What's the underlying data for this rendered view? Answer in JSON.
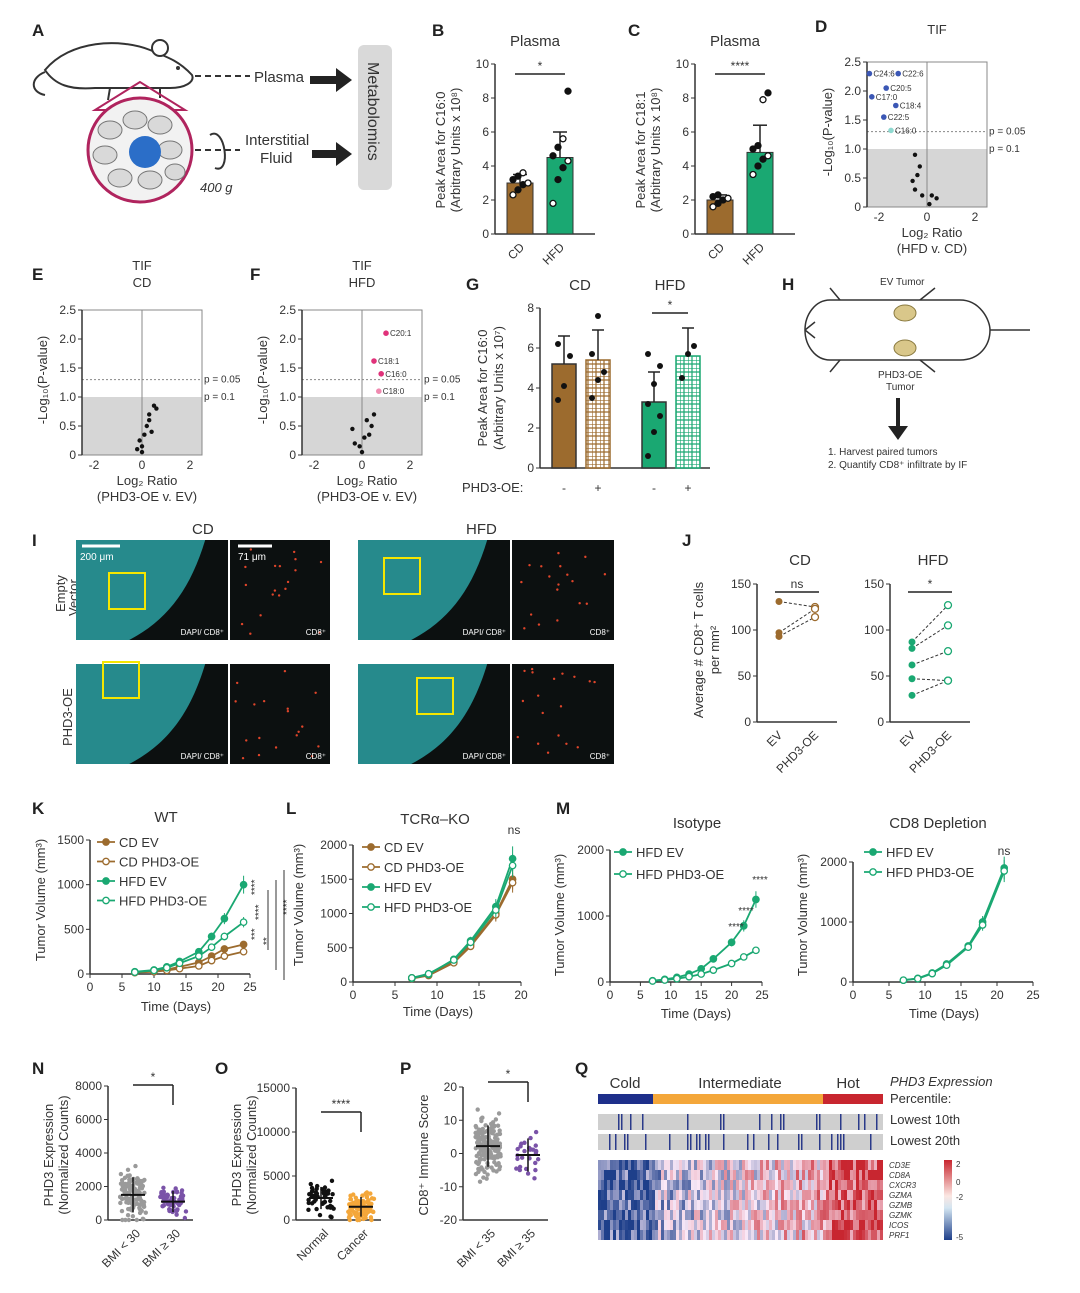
{
  "colors": {
    "cd": "#9c6b2e",
    "hfd": "#1aa872",
    "pink": "#e0327a",
    "cold": "#1e2f8a",
    "intermediate": "#f4a73a",
    "hot": "#c8262f",
    "cyan": "#2fb3b6"
  },
  "labels": {
    "panels": [
      "A",
      "B",
      "C",
      "D",
      "E",
      "F",
      "G",
      "H",
      "I",
      "J",
      "K",
      "L",
      "M",
      "N",
      "O",
      "P",
      "Q"
    ],
    "a": {
      "plasma": "Plasma",
      "interstitial1": "Interstitial",
      "interstitial2": "Fluid",
      "g": "400 g",
      "metabolomics": "Metabolomics"
    },
    "b": {
      "title": "Plasma",
      "ylabel1": "Peak Area for C16:0",
      "ylabel2": "(Arbitrary Units x 10⁸)",
      "yticks": [
        "0",
        "2",
        "4",
        "6",
        "8",
        "10"
      ],
      "cats": [
        "CD",
        "HFD"
      ],
      "sig": "*"
    },
    "c": {
      "title": "Plasma",
      "ylabel1": "Peak Area for C18:1",
      "ylabel2": "(Arbitrary Units x 10⁸)",
      "yticks": [
        "0",
        "2",
        "4",
        "6",
        "8",
        "10"
      ],
      "cats": [
        "CD",
        "HFD"
      ],
      "sig": "****"
    },
    "d": {
      "title": "TIF",
      "ylabel": "-Log₁₀(P-value)",
      "xlabel1": "Log₂ Ratio",
      "xlabel2": "(HFD v. CD)",
      "yticks": [
        "0",
        "0.5",
        "1.0",
        "1.5",
        "2.0",
        "2.5"
      ],
      "xticks": [
        "-2",
        "0",
        "2"
      ],
      "p05": "p = 0.05",
      "p1": "p = 0.1",
      "pts": [
        "C24:6",
        "C22:6",
        "C20:5",
        "C17:0",
        "C18:4",
        "C22:5",
        "C16:0"
      ]
    },
    "e": {
      "title1": "TIF",
      "title2": "CD",
      "ylabel": "-Log₁₀(P-value)",
      "xlabel1": "Log₂ Ratio",
      "xlabel2": "(PHD3-OE v. EV)",
      "yticks": [
        "0",
        "0.5",
        "1.0",
        "1.5",
        "2.0",
        "2.5"
      ],
      "xticks": [
        "-2",
        "0",
        "2"
      ],
      "p05": "p = 0.05",
      "p1": "p = 0.1"
    },
    "f": {
      "title1": "TIF",
      "title2": "HFD",
      "ylabel": "-Log₁₀(P-value)",
      "xlabel1": "Log₂ Ratio",
      "xlabel2": "(PHD3-OE v. EV)",
      "yticks": [
        "0",
        "0.5",
        "1.0",
        "1.5",
        "2.0",
        "2.5"
      ],
      "xticks": [
        "-2",
        "0",
        "2"
      ],
      "p05": "p = 0.05",
      "p1": "p = 0.1",
      "pts": [
        "C20:1",
        "C18:1",
        "C16:0",
        "C18:0"
      ]
    },
    "g": {
      "cd": "CD",
      "hfd": "HFD",
      "ylabel1": "Peak Area for C16:0",
      "ylabel2": "(Arbitrary Units x 10⁷)",
      "yticks": [
        "0",
        "2",
        "4",
        "6",
        "8"
      ],
      "phd": "PHD3-OE:",
      "signs": [
        "-",
        "+",
        "-",
        "+"
      ],
      "sig": "*"
    },
    "h": {
      "ev": "EV Tumor",
      "oe1": "PHD3-OE",
      "oe2": "Tumor",
      "step1": "1. Harvest paired tumors",
      "step2": "2. Quantify CD8⁺ infiltrate by IF"
    },
    "i": {
      "cd": "CD",
      "hfd": "HFD",
      "row1a": "Empty",
      "row1b": "Vector",
      "row2": "PHD3-OE",
      "scale1": "200 μm",
      "scale2": "71 μm",
      "dapi": "DAPI/ CD8⁺",
      "cd8": "CD8⁺"
    },
    "j": {
      "cd": "CD",
      "hfd": "HFD",
      "ylabel1": "Average # CD8⁺ T cells",
      "ylabel2": "per mm²",
      "yticks": [
        "0",
        "50",
        "100",
        "150"
      ],
      "cats": [
        "EV",
        "PHD3-OE"
      ],
      "sig_cd": "ns",
      "sig_hfd": "*"
    },
    "k": {
      "title": "WT",
      "ylabel": "Tumor Volume (mm³)",
      "xlabel": "Time (Days)",
      "yticks": [
        "0",
        "500",
        "1000",
        "1500"
      ],
      "xticks": [
        "0",
        "5",
        "10",
        "15",
        "20",
        "25"
      ],
      "legend": [
        "CD EV",
        "CD PHD3-OE",
        "HFD EV",
        "HFD PHD3-OE"
      ],
      "sigs": [
        "****",
        "****",
        "****",
        "***",
        "**"
      ]
    },
    "l": {
      "title": "TCRα–KO",
      "ylabel": "Tumor Volume (mm³)",
      "xlabel": "Time (Days)",
      "yticks": [
        "0",
        "500",
        "1000",
        "1500",
        "2000"
      ],
      "xticks": [
        "0",
        "5",
        "10",
        "15",
        "20"
      ],
      "legend": [
        "CD EV",
        "CD PHD3-OE",
        "HFD EV",
        "HFD PHD3-OE"
      ],
      "sig": "ns"
    },
    "m": {
      "title1": "Isotype",
      "title2": "CD8 Depletion",
      "ylabel": "Tumor Volume (mm³)",
      "xlabel": "Time (Days)",
      "yticks1": [
        "0",
        "1000",
        "2000"
      ],
      "yticks2": [
        "0",
        "1000",
        "2000"
      ],
      "xticks": [
        "0",
        "5",
        "10",
        "15",
        "20",
        "25"
      ],
      "legend": [
        "HFD EV",
        "HFD PHD3-OE"
      ],
      "sigs": [
        "****",
        "****",
        "****"
      ],
      "sig2": "ns"
    },
    "n": {
      "ylabel1": "PHD3 Expression",
      "ylabel2": "(Normalized Counts)",
      "yticks": [
        "0",
        "2000",
        "4000",
        "6000",
        "8000"
      ],
      "cats": [
        "BMI < 30",
        "BMI ≥ 30"
      ],
      "sig": "*"
    },
    "o": {
      "ylabel1": "PHD3 Expression",
      "ylabel2": "(Normalized Counts)",
      "yticks": [
        "0",
        "5000",
        "10000",
        "15000"
      ],
      "cats": [
        "Normal",
        "Cancer"
      ],
      "sig": "****"
    },
    "p": {
      "ylabel": "CD8⁺ Immune Score",
      "yticks": [
        "-20",
        "-10",
        "0",
        "10",
        "20"
      ],
      "cats": [
        "BMI < 35",
        "BMI ≥ 35"
      ],
      "sig": "*"
    },
    "q": {
      "cold": "Cold",
      "intermediate": "Intermediate",
      "hot": "Hot",
      "legend1": "PHD3 Expression",
      "legend2": "Percentile:",
      "lowest10": "Lowest 10th",
      "lowest20": "Lowest 20th",
      "genes": [
        "CD3E",
        "CD8A",
        "CXCR3",
        "GZMA",
        "GZMB",
        "GZMK",
        "ICOS",
        "PRF1"
      ],
      "scale": [
        "2",
        "0",
        "-2",
        "-5"
      ]
    }
  },
  "chart_data": [
    {
      "panel": "B",
      "type": "bar",
      "title": "Plasma",
      "categories": [
        "CD",
        "HFD"
      ],
      "values": [
        3.0,
        4.5
      ],
      "errors": [
        0.5,
        1.5
      ],
      "points": [
        [
          2.3,
          2.6,
          2.9,
          3.0,
          3.2,
          3.4,
          3.6
        ],
        [
          1.8,
          3.2,
          3.9,
          4.3,
          4.6,
          5.1,
          5.6,
          8.4
        ]
      ],
      "ylim": [
        0,
        10
      ]
    },
    {
      "panel": "C",
      "type": "bar",
      "title": "Plasma",
      "categories": [
        "CD",
        "HFD"
      ],
      "values": [
        2.0,
        4.8
      ],
      "errors": [
        0.3,
        1.6
      ],
      "points": [
        [
          1.6,
          1.8,
          2.0,
          2.1,
          2.2,
          2.3
        ],
        [
          3.5,
          4.0,
          4.4,
          4.6,
          5.0,
          5.2,
          7.9,
          8.3
        ]
      ],
      "ylim": [
        0,
        10
      ]
    },
    {
      "panel": "G",
      "type": "bar",
      "categories": [
        "CD -",
        "CD +",
        "HFD -",
        "HFD +"
      ],
      "values": [
        5.2,
        5.4,
        3.3,
        5.6
      ],
      "errors": [
        1.4,
        1.5,
        1.5,
        1.4
      ],
      "points": [
        [
          3.4,
          4.1,
          5.6,
          6.2
        ],
        [
          3.5,
          4.4,
          4.8,
          5.7,
          7.6
        ],
        [
          0.6,
          1.8,
          2.6,
          3.2,
          4.2,
          5.1,
          5.7
        ],
        [
          4.5,
          5.7,
          6.1
        ]
      ],
      "ylim": [
        0,
        8
      ]
    },
    {
      "panel": "J",
      "type": "scatter",
      "series": [
        {
          "name": "CD",
          "ev": [
            131,
            97,
            93
          ],
          "oe": [
            125,
            123,
            114
          ]
        },
        {
          "name": "HFD",
          "ev": [
            87,
            80,
            62,
            47,
            29
          ],
          "oe": [
            127,
            105,
            77,
            45,
            45
          ]
        }
      ],
      "ylim": [
        0,
        150
      ]
    },
    {
      "panel": "K",
      "type": "line",
      "title": "WT",
      "x": [
        7,
        10,
        12,
        14,
        17,
        19,
        21,
        24
      ],
      "series": [
        {
          "name": "CD EV",
          "values": [
            20,
            35,
            50,
            80,
            130,
            200,
            280,
            330
          ]
        },
        {
          "name": "CD PHD3-OE",
          "values": [
            15,
            25,
            40,
            60,
            90,
            150,
            200,
            250
          ]
        },
        {
          "name": "HFD EV",
          "values": [
            25,
            45,
            80,
            140,
            250,
            420,
            620,
            1000
          ]
        },
        {
          "name": "HFD PHD3-OE",
          "values": [
            20,
            40,
            70,
            120,
            200,
            300,
            420,
            580
          ]
        }
      ],
      "ylim": [
        0,
        1500
      ]
    },
    {
      "panel": "L",
      "type": "line",
      "title": "TCRα–KO",
      "x": [
        7,
        9,
        12,
        14,
        17,
        19
      ],
      "series": [
        {
          "name": "CD EV",
          "values": [
            60,
            100,
            300,
            550,
            1000,
            1500
          ]
        },
        {
          "name": "CD PHD3-OE",
          "values": [
            50,
            95,
            280,
            520,
            980,
            1450
          ]
        },
        {
          "name": "HFD EV",
          "values": [
            55,
            110,
            330,
            600,
            1100,
            1800
          ]
        },
        {
          "name": "HFD PHD3-OE",
          "values": [
            60,
            120,
            320,
            580,
            1050,
            1700
          ]
        }
      ],
      "ylim": [
        0,
        2000
      ]
    },
    {
      "panel": "M1",
      "type": "line",
      "title": "Isotype",
      "x": [
        7,
        9,
        11,
        13,
        15,
        17,
        20,
        22,
        24
      ],
      "series": [
        {
          "name": "HFD EV",
          "values": [
            20,
            40,
            70,
            120,
            200,
            350,
            600,
            850,
            1250
          ]
        },
        {
          "name": "HFD PHD3-OE",
          "values": [
            15,
            30,
            50,
            80,
            120,
            180,
            280,
            380,
            480
          ]
        }
      ],
      "ylim": [
        0,
        2000
      ]
    },
    {
      "panel": "M2",
      "type": "line",
      "title": "CD8 Depletion",
      "x": [
        7,
        9,
        11,
        13,
        16,
        18,
        21
      ],
      "series": [
        {
          "name": "HFD EV",
          "values": [
            30,
            60,
            150,
            300,
            600,
            1000,
            1900
          ]
        },
        {
          "name": "HFD PHD3-OE",
          "values": [
            30,
            55,
            140,
            280,
            580,
            950,
            1850
          ]
        }
      ],
      "ylim": [
        0,
        2000
      ]
    },
    {
      "panel": "N",
      "type": "scatter",
      "categories": [
        "BMI < 30",
        "BMI ≥ 30"
      ],
      "values": [
        1500,
        1100
      ],
      "ylim": [
        0,
        8000
      ]
    },
    {
      "panel": "O",
      "type": "scatter",
      "categories": [
        "Normal",
        "Cancer"
      ],
      "values": [
        2500,
        1500
      ],
      "ylim": [
        0,
        15000
      ]
    },
    {
      "panel": "P",
      "type": "scatter",
      "categories": [
        "BMI < 35",
        "BMI ≥ 35"
      ],
      "values": [
        0,
        -3
      ],
      "ylim": [
        -25,
        20
      ]
    }
  ]
}
